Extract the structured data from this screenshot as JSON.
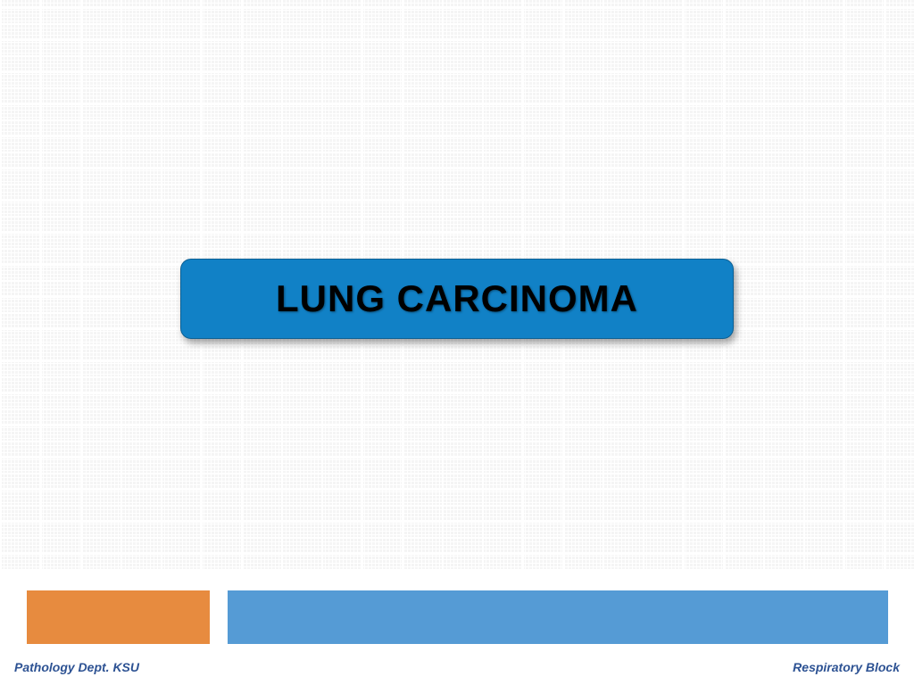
{
  "slide": {
    "title": "LUNG CARCINOMA",
    "title_color": "#000000",
    "button_bg": "#1181c6",
    "button_border_radius": 12,
    "title_fontsize": 42,
    "title_fontweight": "bold"
  },
  "background": {
    "grid_color": "#f0f0f0",
    "grid_line_color": "#ffffff"
  },
  "bars": {
    "orange": "#e78b3f",
    "blue": "#559bd5"
  },
  "footer": {
    "left_text": "Pathology Dept. KSU",
    "left_color": "#2d5293",
    "right_text": "Respiratory Block",
    "right_color": "#2d5293",
    "fontsize": 14
  }
}
